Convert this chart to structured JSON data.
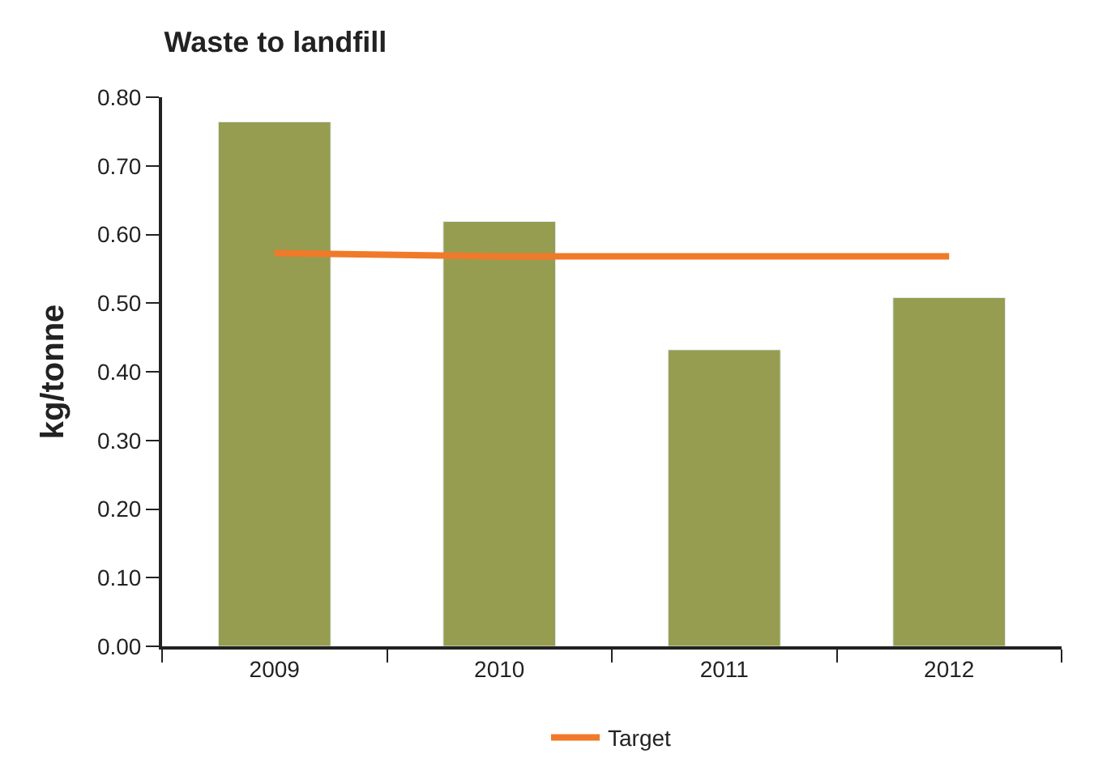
{
  "chart_data": {
    "type": "bar",
    "title": "Waste to landfill",
    "ylabel": "kg/tonne",
    "categories": [
      "2009",
      "2010",
      "2011",
      "2012"
    ],
    "series": [
      {
        "color": "#969d50",
        "values": [
          0.764,
          0.619,
          0.432,
          0.508
        ]
      },
      {
        "name": "Target",
        "type": "line",
        "color": "#f07a2a",
        "values": [
          0.573,
          0.568,
          0.568,
          0.568
        ]
      }
    ],
    "ylim": [
      0,
      0.8
    ],
    "yticks": [
      {
        "value": 0,
        "label": "0.00"
      },
      {
        "value": 0.1,
        "label": "0.10"
      },
      {
        "value": 0.2,
        "label": "0.20"
      },
      {
        "value": 0.3,
        "label": "0.30"
      },
      {
        "value": 0.4,
        "label": "0.40"
      },
      {
        "value": 0.5,
        "label": "0.50"
      },
      {
        "value": 0.6,
        "label": "0.60"
      },
      {
        "value": 0.7,
        "label": "0.70"
      },
      {
        "value": 0.8,
        "label": "0.80"
      }
    ],
    "legend": "bottom",
    "marker": "none"
  }
}
